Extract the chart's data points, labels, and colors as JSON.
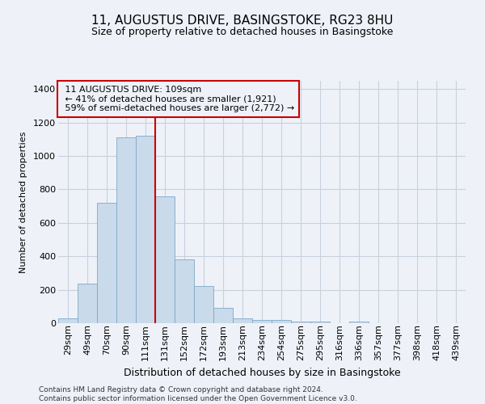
{
  "title": "11, AUGUSTUS DRIVE, BASINGSTOKE, RG23 8HU",
  "subtitle": "Size of property relative to detached houses in Basingstoke",
  "xlabel": "Distribution of detached houses by size in Basingstoke",
  "ylabel": "Number of detached properties",
  "footnote": "Contains HM Land Registry data © Crown copyright and database right 2024.\nContains public sector information licensed under the Open Government Licence v3.0.",
  "bar_color": "#c9daea",
  "bar_edge_color": "#7fa8c8",
  "grid_color": "#c8d0dc",
  "annotation_box_color": "#cc0000",
  "vline_color": "#cc0000",
  "categories": [
    "29sqm",
    "49sqm",
    "70sqm",
    "90sqm",
    "111sqm",
    "131sqm",
    "152sqm",
    "172sqm",
    "193sqm",
    "213sqm",
    "234sqm",
    "254sqm",
    "275sqm",
    "295sqm",
    "316sqm",
    "336sqm",
    "357sqm",
    "377sqm",
    "398sqm",
    "418sqm",
    "439sqm"
  ],
  "values": [
    28,
    235,
    720,
    1110,
    1120,
    760,
    380,
    220,
    90,
    28,
    20,
    18,
    12,
    10,
    0,
    8,
    0,
    0,
    0,
    0,
    0
  ],
  "property_label": "11 AUGUSTUS DRIVE: 109sqm",
  "pct_smaller": 41,
  "count_smaller": 1921,
  "pct_larger": 59,
  "count_larger": 2772,
  "vline_bin_index": 4,
  "ylim": [
    0,
    1450
  ],
  "yticks": [
    0,
    200,
    400,
    600,
    800,
    1000,
    1200,
    1400
  ],
  "background_color": "#eef2f8",
  "title_fontsize": 11,
  "subtitle_fontsize": 9,
  "ylabel_fontsize": 8,
  "xlabel_fontsize": 9,
  "footnote_fontsize": 6.5,
  "annotation_fontsize": 8,
  "tick_fontsize": 8
}
